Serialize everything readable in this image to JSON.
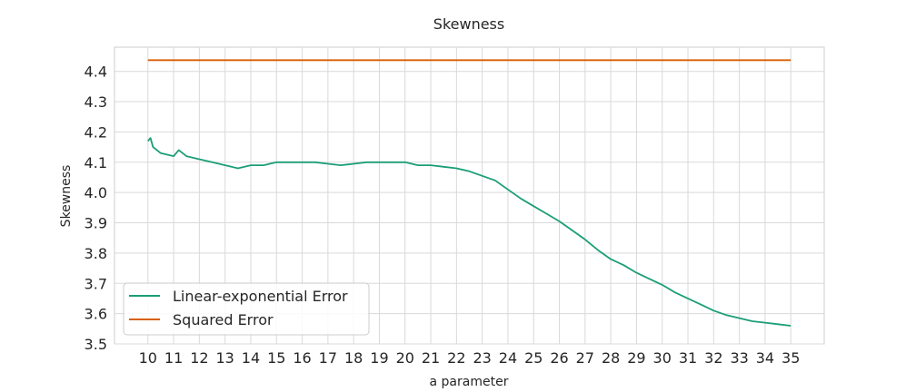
{
  "chart_data": {
    "type": "line",
    "title": "Skewness",
    "xlabel": "a parameter",
    "ylabel": "Skewness",
    "xlim": [
      8.7,
      36.3
    ],
    "ylim": [
      3.5,
      4.48
    ],
    "x_ticks": [
      10,
      11,
      12,
      13,
      14,
      15,
      16,
      17,
      18,
      19,
      20,
      21,
      22,
      23,
      24,
      25,
      26,
      27,
      28,
      29,
      30,
      31,
      32,
      33,
      34,
      35
    ],
    "y_ticks": [
      3.5,
      3.6,
      3.7,
      3.8,
      3.9,
      4.0,
      4.1,
      4.2,
      4.3,
      4.4
    ],
    "y_tick_labels": [
      "3.5",
      "3.6",
      "3.7",
      "3.8",
      "3.9",
      "4.0",
      "4.1",
      "4.2",
      "4.3",
      "4.4"
    ],
    "grid": true,
    "legend_position": "lower-left",
    "series": [
      {
        "name": "Linear-exponential Error",
        "color": "#1b9e77",
        "x": [
          10,
          10.1,
          10.2,
          10.5,
          11,
          11.2,
          11.5,
          12,
          12.5,
          13,
          13.5,
          14,
          14.5,
          15,
          15.5,
          16,
          16.5,
          17,
          17.5,
          18,
          18.5,
          19,
          19.5,
          20,
          20.5,
          21,
          21.5,
          22,
          22.5,
          23,
          23.5,
          24,
          24.5,
          25,
          25.5,
          26,
          26.5,
          27,
          27.5,
          28,
          28.5,
          29,
          29.5,
          30,
          30.5,
          31,
          31.5,
          32,
          32.5,
          33,
          33.5,
          34,
          34.5,
          35
        ],
        "y": [
          4.17,
          4.18,
          4.15,
          4.13,
          4.12,
          4.14,
          4.12,
          4.11,
          4.1,
          4.09,
          4.08,
          4.09,
          4.09,
          4.1,
          4.1,
          4.1,
          4.1,
          4.095,
          4.09,
          4.095,
          4.1,
          4.1,
          4.1,
          4.1,
          4.09,
          4.09,
          4.085,
          4.08,
          4.07,
          4.055,
          4.04,
          4.01,
          3.98,
          3.955,
          3.93,
          3.905,
          3.875,
          3.845,
          3.81,
          3.78,
          3.76,
          3.735,
          3.715,
          3.695,
          3.67,
          3.65,
          3.63,
          3.61,
          3.595,
          3.585,
          3.575,
          3.57,
          3.565,
          3.56
        ]
      },
      {
        "name": "Squared Error",
        "color": "#d95f02",
        "x": [
          10,
          35
        ],
        "y": [
          4.437,
          4.437
        ]
      }
    ]
  }
}
